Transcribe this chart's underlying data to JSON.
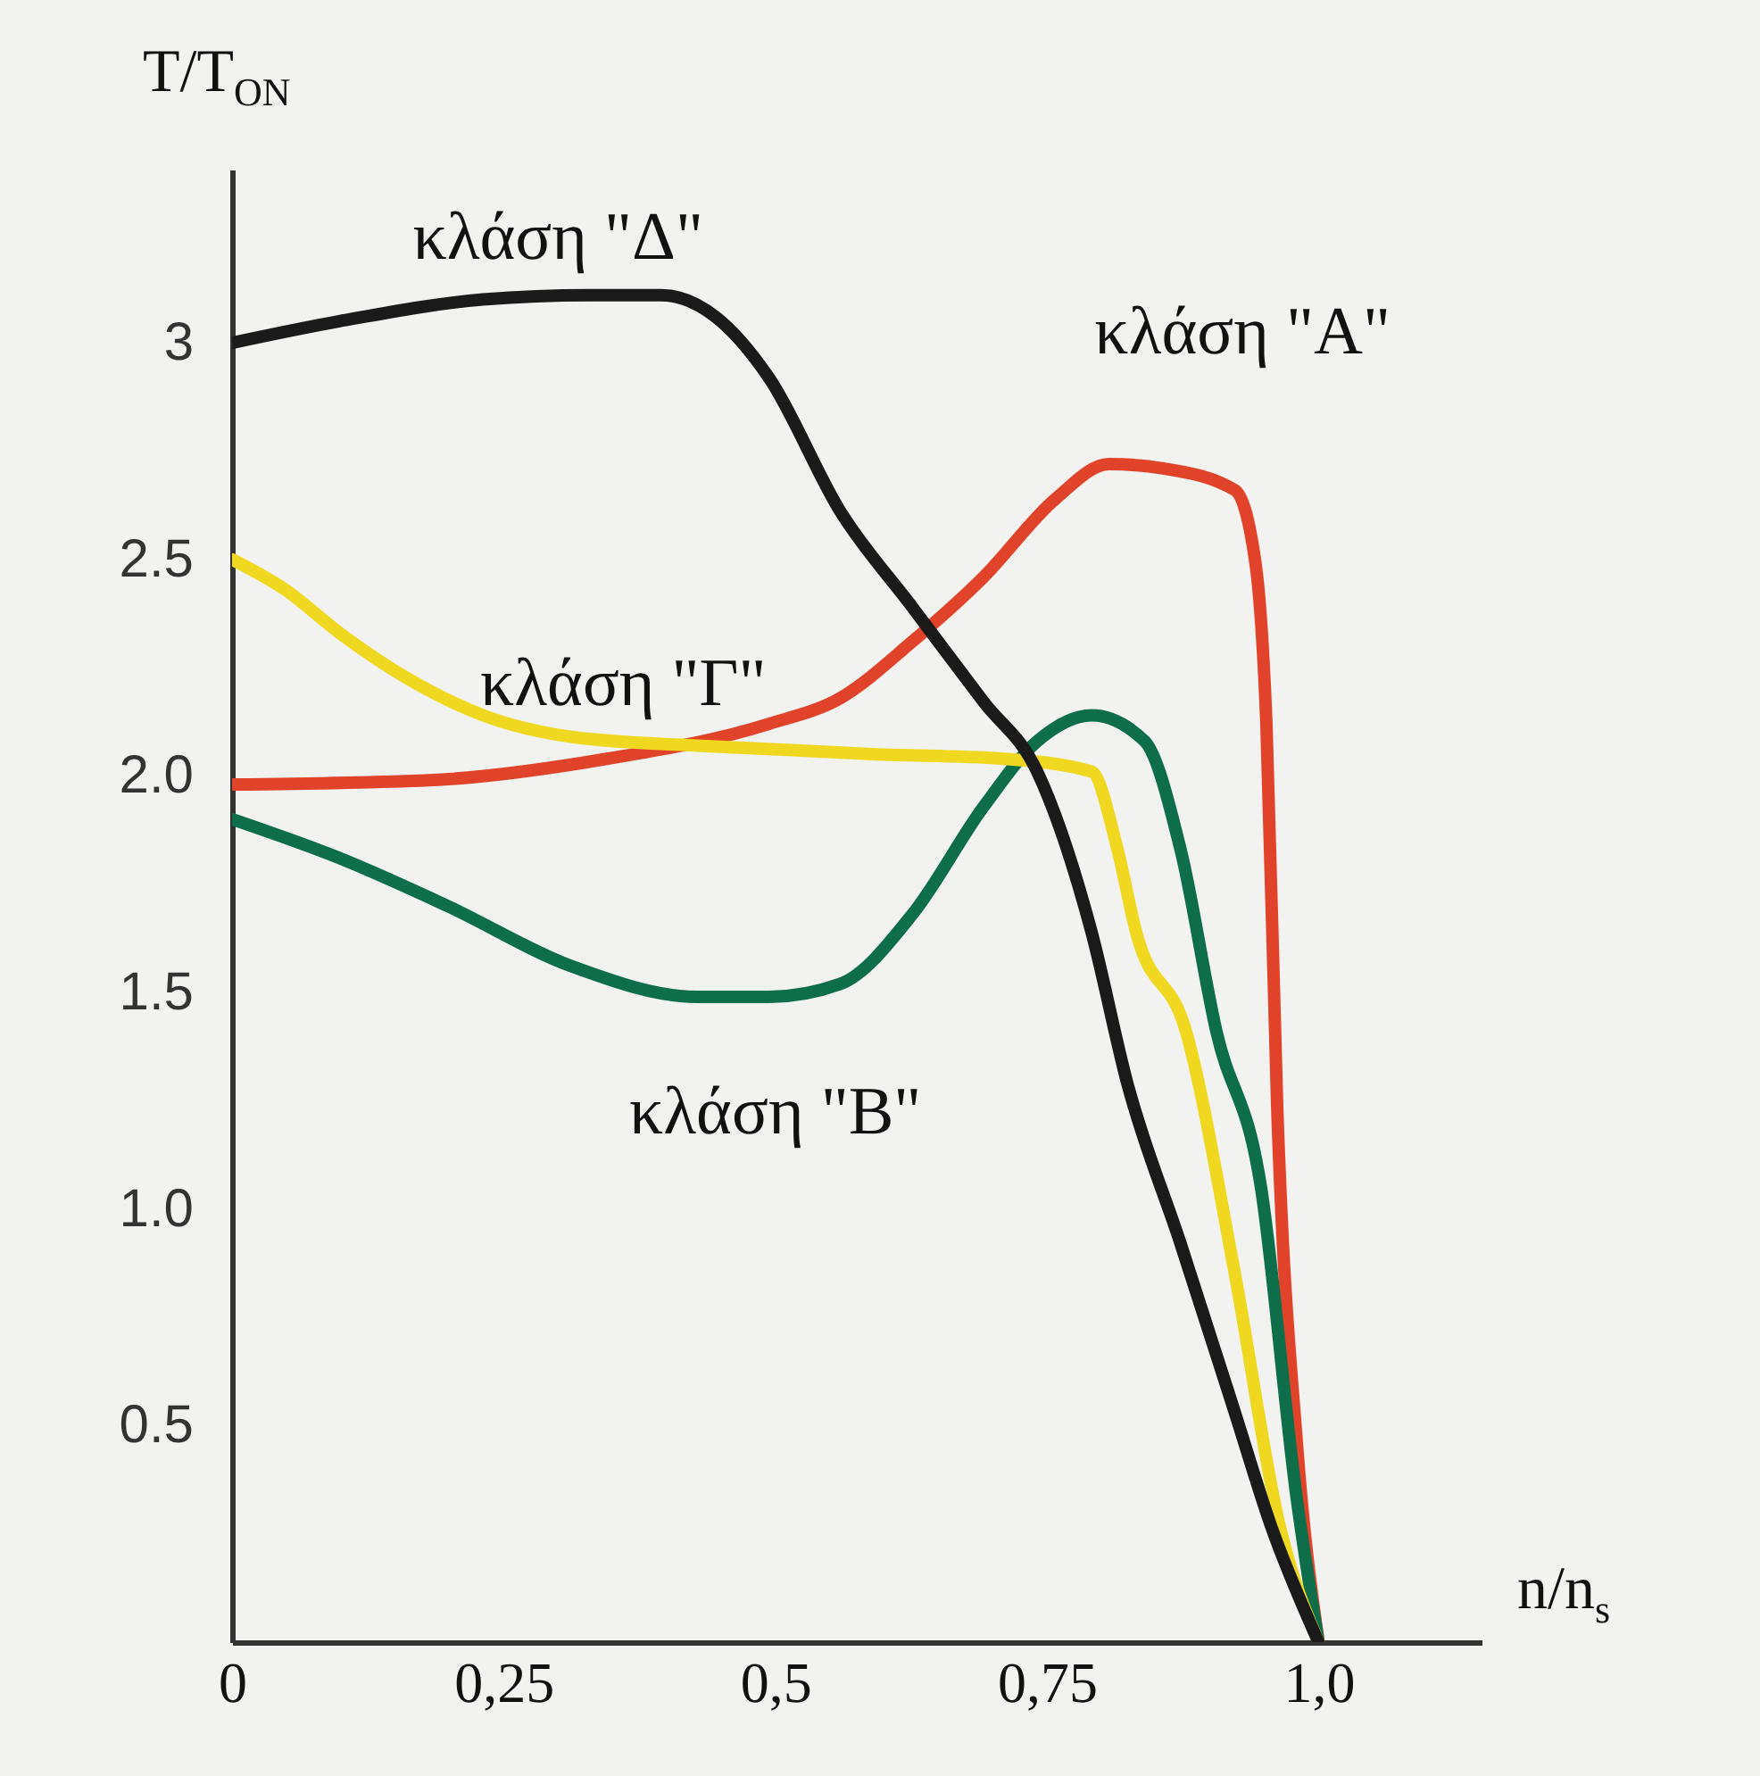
{
  "chart_data": {
    "type": "line",
    "xlabel": "n/n$_{s}$",
    "ylabel": "T/T$_{ON}$",
    "xlim": [
      0,
      1.15
    ],
    "ylim": [
      0,
      3.4
    ],
    "xticks": [
      0,
      {
        "value": 0.25,
        "label": "0,25"
      },
      {
        "value": 0.5,
        "label": "0,5"
      },
      {
        "value": 0.75,
        "label": "0,75"
      },
      {
        "value": 1,
        "label": "1,0"
      }
    ],
    "yticks": [
      {
        "value": 0.5,
        "label": "0.5"
      },
      {
        "value": 1,
        "label": "1.0"
      },
      {
        "value": 1.5,
        "label": "1.5"
      },
      {
        "value": 2,
        "label": "2.0"
      },
      2.5,
      3
    ],
    "grid": false,
    "legend": false,
    "marker": "none",
    "line_style": "solid",
    "series": [
      {
        "name": "κλάση \"Α\"",
        "color": "#e0432a",
        "x": [
          0,
          0.181,
          0.346,
          0.494,
          0.56,
          0.626,
          0.692,
          0.758,
          0.807,
          0.857,
          0.923,
          0.942,
          0.952,
          0.962,
          0.98,
          1
        ],
        "values": [
          1.98,
          1.99,
          2.04,
          2.12,
          2.18,
          2.31,
          2.46,
          2.64,
          2.72,
          2.71,
          2.66,
          2.49,
          2.12,
          1.23,
          0.46,
          0
        ]
      },
      {
        "name": "κλάση \"Β\"",
        "color": "#0f6e4a",
        "x": [
          0,
          0.099,
          0.198,
          0.313,
          0.428,
          0.494,
          0.56,
          0.626,
          0.692,
          0.741,
          0.791,
          0.84,
          0.873,
          0.906,
          0.947,
          0.98,
          1
        ],
        "values": [
          1.9,
          1.81,
          1.7,
          1.56,
          1.49,
          1.49,
          1.52,
          1.68,
          1.93,
          2.08,
          2.14,
          2.08,
          1.83,
          1.41,
          1.05,
          0.33,
          0
        ]
      },
      {
        "name": "κλάση \"Γ\"",
        "color": "#f0d820",
        "x": [
          0,
          0.049,
          0.099,
          0.165,
          0.231,
          0.313,
          0.428,
          0.511,
          0.593,
          0.708,
          0.791,
          0.815,
          0.832,
          0.878,
          0.923,
          0.964,
          1
        ],
        "values": [
          2.5,
          2.43,
          2.33,
          2.22,
          2.14,
          2.09,
          2.07,
          2.06,
          2.05,
          2.04,
          2.01,
          1.83,
          1.64,
          1.41,
          0.85,
          0.27,
          0
        ]
      },
      {
        "name": "κλάση \"Δ\"",
        "color": "#1a1a1a",
        "x": [
          0,
          0.099,
          0.231,
          0.329,
          0.395,
          0.445,
          0.494,
          0.56,
          0.626,
          0.692,
          0.741,
          0.791,
          0.824,
          0.873,
          0.923,
          0.956,
          1
        ],
        "values": [
          3.0,
          3.05,
          3.1,
          3.11,
          3.11,
          3.06,
          2.92,
          2.61,
          2.39,
          2.17,
          2.01,
          1.64,
          1.29,
          0.92,
          0.53,
          0.27,
          0
        ]
      }
    ]
  }
}
